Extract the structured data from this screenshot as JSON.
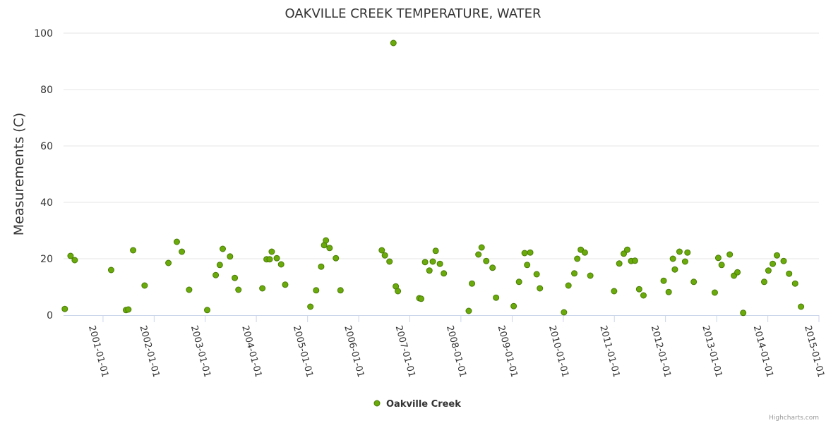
{
  "chart_data": {
    "type": "scatter",
    "title": "OAKVILLE CREEK TEMPERATURE, WATER",
    "xlabel": "",
    "ylabel": "Measurements (C)",
    "ylim": [
      0,
      100
    ],
    "yticks": [
      0,
      20,
      40,
      60,
      80,
      100
    ],
    "xlim": [
      "2000-03-25",
      "2015-01-01"
    ],
    "xticks": [
      "2001-01-01",
      "2002-01-01",
      "2003-01-01",
      "2004-01-01",
      "2005-01-01",
      "2006-01-01",
      "2007-01-01",
      "2008-01-01",
      "2009-01-01",
      "2010-01-01",
      "2011-01-01",
      "2012-01-01",
      "2013-01-01",
      "2014-01-01",
      "2015-01-01"
    ],
    "series": [
      {
        "name": "Oakville Creek",
        "color": "#6aaa0a",
        "stroke": "#4a7d06",
        "points": [
          [
            "2000-04-03",
            2.2
          ],
          [
            "2000-05-14",
            21.0
          ],
          [
            "2000-06-13",
            19.5
          ],
          [
            "2001-02-28",
            16.0
          ],
          [
            "2001-06-14",
            1.8
          ],
          [
            "2001-07-01",
            2.0
          ],
          [
            "2001-08-04",
            23.0
          ],
          [
            "2001-10-25",
            10.5
          ],
          [
            "2002-04-13",
            18.5
          ],
          [
            "2002-06-12",
            26.0
          ],
          [
            "2002-07-18",
            22.5
          ],
          [
            "2002-09-08",
            9.0
          ],
          [
            "2003-01-15",
            1.8
          ],
          [
            "2003-03-17",
            14.2
          ],
          [
            "2003-04-15",
            17.8
          ],
          [
            "2003-05-06",
            23.5
          ],
          [
            "2003-06-27",
            20.8
          ],
          [
            "2003-07-31",
            13.2
          ],
          [
            "2003-08-26",
            9.0
          ],
          [
            "2004-02-13",
            9.5
          ],
          [
            "2004-03-14",
            19.8
          ],
          [
            "2004-04-05",
            19.8
          ],
          [
            "2004-04-20",
            22.5
          ],
          [
            "2004-05-26",
            20.2
          ],
          [
            "2004-06-26",
            18.0
          ],
          [
            "2004-07-25",
            10.8
          ],
          [
            "2005-01-21",
            3.0
          ],
          [
            "2005-03-03",
            8.8
          ],
          [
            "2005-04-08",
            17.2
          ],
          [
            "2005-04-29",
            24.8
          ],
          [
            "2005-05-12",
            26.5
          ],
          [
            "2005-06-07",
            23.8
          ],
          [
            "2005-07-22",
            20.2
          ],
          [
            "2005-08-24",
            8.8
          ],
          [
            "2006-06-15",
            23.0
          ],
          [
            "2006-07-07",
            21.2
          ],
          [
            "2006-08-09",
            19.0
          ],
          [
            "2006-09-06",
            96.5
          ],
          [
            "2006-09-23",
            10.2
          ],
          [
            "2006-10-08",
            8.5
          ],
          [
            "2007-03-10",
            6.0
          ],
          [
            "2007-03-23",
            5.8
          ],
          [
            "2007-04-20",
            18.8
          ],
          [
            "2007-05-21",
            15.8
          ],
          [
            "2007-06-14",
            19.0
          ],
          [
            "2007-07-05",
            22.8
          ],
          [
            "2007-08-04",
            18.2
          ],
          [
            "2007-09-01",
            14.8
          ],
          [
            "2008-02-26",
            1.5
          ],
          [
            "2008-03-20",
            11.2
          ],
          [
            "2008-05-05",
            21.5
          ],
          [
            "2008-05-28",
            24.0
          ],
          [
            "2008-06-30",
            19.2
          ],
          [
            "2008-08-14",
            16.8
          ],
          [
            "2008-09-08",
            6.2
          ],
          [
            "2009-01-12",
            3.2
          ],
          [
            "2009-02-19",
            11.8
          ],
          [
            "2009-03-31",
            22.0
          ],
          [
            "2009-04-18",
            17.8
          ],
          [
            "2009-05-10",
            22.2
          ],
          [
            "2009-06-25",
            14.5
          ],
          [
            "2009-07-18",
            9.5
          ],
          [
            "2010-01-06",
            1.0
          ],
          [
            "2010-02-07",
            10.5
          ],
          [
            "2010-03-21",
            14.8
          ],
          [
            "2010-04-11",
            20.0
          ],
          [
            "2010-05-06",
            23.2
          ],
          [
            "2010-06-04",
            22.2
          ],
          [
            "2010-07-13",
            14.0
          ],
          [
            "2010-12-30",
            8.5
          ],
          [
            "2011-02-05",
            18.3
          ],
          [
            "2011-03-09",
            21.8
          ],
          [
            "2011-04-03",
            23.2
          ],
          [
            "2011-05-01",
            19.2
          ],
          [
            "2011-05-28",
            19.3
          ],
          [
            "2011-06-27",
            9.2
          ],
          [
            "2011-07-28",
            7.0
          ],
          [
            "2011-12-19",
            12.2
          ],
          [
            "2012-01-24",
            8.2
          ],
          [
            "2012-02-23",
            20.0
          ],
          [
            "2012-03-08",
            16.2
          ],
          [
            "2012-04-10",
            22.5
          ],
          [
            "2012-05-20",
            19.0
          ],
          [
            "2012-06-06",
            22.2
          ],
          [
            "2012-07-21",
            11.8
          ],
          [
            "2012-12-18",
            8.0
          ],
          [
            "2013-01-12",
            20.3
          ],
          [
            "2013-02-05",
            17.8
          ],
          [
            "2013-04-04",
            21.5
          ],
          [
            "2013-05-04",
            14.0
          ],
          [
            "2013-05-29",
            15.2
          ],
          [
            "2013-07-09",
            0.8
          ],
          [
            "2013-12-06",
            11.8
          ],
          [
            "2014-01-05",
            15.8
          ],
          [
            "2014-02-05",
            18.2
          ],
          [
            "2014-03-07",
            21.2
          ],
          [
            "2014-04-24",
            19.2
          ],
          [
            "2014-06-02",
            14.7
          ],
          [
            "2014-07-15",
            11.2
          ],
          [
            "2014-08-26",
            3.0
          ]
        ]
      }
    ],
    "legend": "bottom-center"
  },
  "credits": "Highcharts.com"
}
